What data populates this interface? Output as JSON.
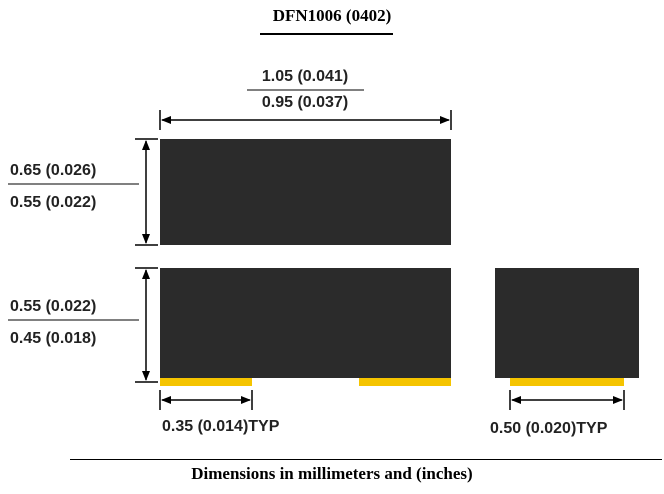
{
  "title": "DFN1006 (0402)",
  "caption": "Dimensions in millimeters and (inches)",
  "dimensions": {
    "length_max": "1.05 (0.041)",
    "length_min": "0.95 (0.037)",
    "top_height_max": "0.65 (0.026)",
    "top_height_min": "0.55 (0.022)",
    "side_height_max": "0.55 (0.022)",
    "side_height_min": "0.45 (0.018)",
    "pad_length": "0.35 (0.014)TYP",
    "pad_width": "0.50 (0.020)TYP"
  },
  "colors": {
    "body": "#2b2b2b",
    "pad": "#f5c400",
    "line": "#000000"
  }
}
